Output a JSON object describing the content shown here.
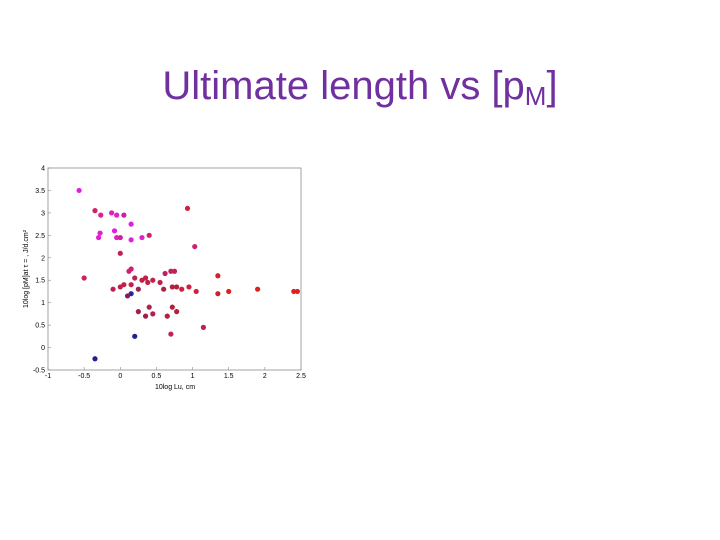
{
  "slide": {
    "title_main": "Ultimate length vs [p",
    "title_sub": "M",
    "title_end": "]"
  },
  "chart_data": {
    "type": "scatter",
    "title": "",
    "xlabel": "10log Lu, cm",
    "ylabel": "10log [pM]at τ = , J/d.cm²",
    "xlim": [
      -1,
      2.5
    ],
    "ylim": [
      -0.5,
      4
    ],
    "xticks": [
      "-1",
      "-0.5",
      "0",
      "0.5",
      "1",
      "1.5",
      "2",
      "2.5"
    ],
    "yticks": [
      "-0.5",
      "0",
      "0.5",
      "1",
      "1.5",
      "2",
      "2.5",
      "3",
      "3.5",
      "4"
    ],
    "grid": false,
    "points": [
      {
        "x": -0.57,
        "y": 3.5,
        "color": "#e020e0"
      },
      {
        "x": -0.35,
        "y": 3.05,
        "color": "#d0206a"
      },
      {
        "x": -0.27,
        "y": 2.95,
        "color": "#e02090"
      },
      {
        "x": -0.12,
        "y": 3.0,
        "color": "#e020c0"
      },
      {
        "x": -0.05,
        "y": 2.95,
        "color": "#e020d0"
      },
      {
        "x": 0.05,
        "y": 2.95,
        "color": "#d020a0"
      },
      {
        "x": 0.15,
        "y": 2.75,
        "color": "#e020e0"
      },
      {
        "x": -0.28,
        "y": 2.55,
        "color": "#e020d0"
      },
      {
        "x": -0.08,
        "y": 2.6,
        "color": "#e020e0"
      },
      {
        "x": -0.3,
        "y": 2.45,
        "color": "#e020d0"
      },
      {
        "x": -0.05,
        "y": 2.45,
        "color": "#e020c0"
      },
      {
        "x": 0.0,
        "y": 2.45,
        "color": "#d020a0"
      },
      {
        "x": 0.15,
        "y": 2.4,
        "color": "#e020e0"
      },
      {
        "x": 0.3,
        "y": 2.45,
        "color": "#e020d0"
      },
      {
        "x": 0.4,
        "y": 2.5,
        "color": "#d02070"
      },
      {
        "x": 0.93,
        "y": 3.1,
        "color": "#d02040"
      },
      {
        "x": 1.03,
        "y": 2.25,
        "color": "#d02070"
      },
      {
        "x": 0.0,
        "y": 2.1,
        "color": "#c0205a"
      },
      {
        "x": -0.5,
        "y": 1.55,
        "color": "#d02060"
      },
      {
        "x": -0.1,
        "y": 1.3,
        "color": "#c02050"
      },
      {
        "x": 0.0,
        "y": 1.35,
        "color": "#c02050"
      },
      {
        "x": 0.05,
        "y": 1.4,
        "color": "#c0204a"
      },
      {
        "x": 0.12,
        "y": 1.7,
        "color": "#d02070"
      },
      {
        "x": 0.15,
        "y": 1.75,
        "color": "#d02070"
      },
      {
        "x": 0.2,
        "y": 1.55,
        "color": "#c02050"
      },
      {
        "x": 0.15,
        "y": 1.4,
        "color": "#c0204a"
      },
      {
        "x": 0.3,
        "y": 1.5,
        "color": "#c02040"
      },
      {
        "x": 0.35,
        "y": 1.55,
        "color": "#c02050"
      },
      {
        "x": 0.38,
        "y": 1.45,
        "color": "#c02040"
      },
      {
        "x": 0.45,
        "y": 1.5,
        "color": "#c02050"
      },
      {
        "x": 0.55,
        "y": 1.45,
        "color": "#c02040"
      },
      {
        "x": 0.62,
        "y": 1.65,
        "color": "#c02060"
      },
      {
        "x": 0.7,
        "y": 1.7,
        "color": "#c02060"
      },
      {
        "x": 0.75,
        "y": 1.7,
        "color": "#c02060"
      },
      {
        "x": 0.72,
        "y": 1.35,
        "color": "#b02040"
      },
      {
        "x": 0.78,
        "y": 1.35,
        "color": "#b02040"
      },
      {
        "x": 0.6,
        "y": 1.3,
        "color": "#b02040"
      },
      {
        "x": 0.85,
        "y": 1.3,
        "color": "#d02040"
      },
      {
        "x": 0.95,
        "y": 1.35,
        "color": "#d02040"
      },
      {
        "x": 1.05,
        "y": 1.25,
        "color": "#d02040"
      },
      {
        "x": 1.35,
        "y": 1.6,
        "color": "#d02030"
      },
      {
        "x": 1.35,
        "y": 1.2,
        "color": "#d02030"
      },
      {
        "x": 1.5,
        "y": 1.25,
        "color": "#e02020"
      },
      {
        "x": 1.9,
        "y": 1.3,
        "color": "#e02020"
      },
      {
        "x": 2.4,
        "y": 1.25,
        "color": "#e02020"
      },
      {
        "x": 2.45,
        "y": 1.25,
        "color": "#e02020"
      },
      {
        "x": 0.15,
        "y": 1.2,
        "color": "#3020a0"
      },
      {
        "x": 0.1,
        "y": 1.15,
        "color": "#802060"
      },
      {
        "x": 0.25,
        "y": 1.3,
        "color": "#a02050"
      },
      {
        "x": 0.25,
        "y": 0.8,
        "color": "#a02050"
      },
      {
        "x": 0.35,
        "y": 0.7,
        "color": "#a02040"
      },
      {
        "x": 0.4,
        "y": 0.9,
        "color": "#b02050"
      },
      {
        "x": 0.45,
        "y": 0.75,
        "color": "#b02050"
      },
      {
        "x": 0.65,
        "y": 0.7,
        "color": "#b02040"
      },
      {
        "x": 0.72,
        "y": 0.9,
        "color": "#b02040"
      },
      {
        "x": 0.78,
        "y": 0.8,
        "color": "#b02040"
      },
      {
        "x": 0.7,
        "y": 0.3,
        "color": "#c02060"
      },
      {
        "x": 1.15,
        "y": 0.45,
        "color": "#c02050"
      },
      {
        "x": 0.2,
        "y": 0.25,
        "color": "#202090"
      },
      {
        "x": -0.35,
        "y": -0.25,
        "color": "#202090"
      }
    ]
  }
}
